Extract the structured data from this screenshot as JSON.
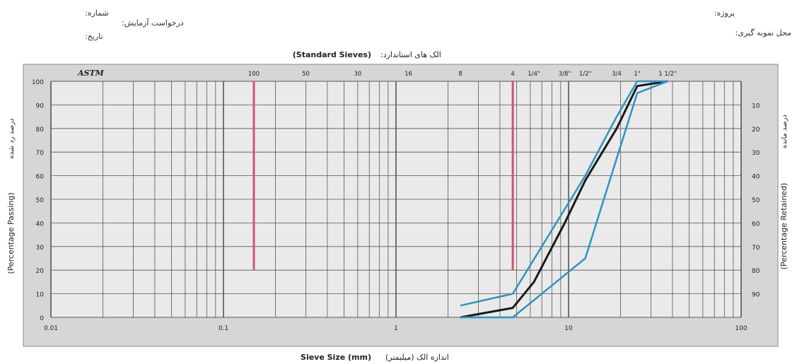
{
  "header": {
    "right_line1": "پروژه:",
    "right_line2": "محل نمونه گیری:",
    "left_number": "شماره:",
    "left_request": "درخواست آزمایش:",
    "left_date": "تاریخ:"
  },
  "colors": {
    "plot_bg": "#eaeaea",
    "frame": "#8a8a8a",
    "grid": "#555555",
    "marker_lines": "#d0507a",
    "gradation": "#1a1a1a",
    "limits": "#2b95bf"
  },
  "chart_data": {
    "type": "line",
    "title": "(Standard Sieves)",
    "title_fa": "الک های استاندارد:",
    "xlabel": "Sieve Size (mm)",
    "xlabel_fa": "اندازه الک (میلیمتر)",
    "ylabel_left": "(Percentage Passing)",
    "ylabel_left_fa": "درصد رد شده",
    "ylabel_right": "(Percentage Retained)",
    "ylabel_right_fa": "درصد مانده",
    "x_scale": "log",
    "xlim": [
      0.01,
      100
    ],
    "ylim": [
      0,
      100
    ],
    "x_ticks": [
      0.01,
      0.1,
      1,
      10,
      100
    ],
    "x_tick_labels": [
      "0.01",
      "0.1",
      "1",
      "10",
      "100"
    ],
    "y_ticks_left": [
      0,
      10,
      20,
      30,
      40,
      50,
      60,
      70,
      80,
      90,
      100
    ],
    "y_tick_labels_left": [
      "0",
      "10",
      "20",
      "30",
      "40",
      "50",
      "60",
      "70",
      "80",
      "90",
      "100"
    ],
    "y_ticks_right_passing": [
      90,
      80,
      70,
      60,
      50,
      40,
      30,
      20,
      10
    ],
    "y_tick_labels_right": [
      "10",
      "20",
      "30",
      "40",
      "50",
      "60",
      "70",
      "80",
      "90"
    ],
    "sieve_standard": "ASTM",
    "sieves": [
      {
        "label": "100",
        "size": 0.15
      },
      {
        "label": "50",
        "size": 0.3
      },
      {
        "label": "30",
        "size": 0.6
      },
      {
        "label": "16",
        "size": 1.18
      },
      {
        "label": "8",
        "size": 2.36
      },
      {
        "label": "4",
        "size": 4.75
      },
      {
        "label": "1/4\"",
        "size": 6.3
      },
      {
        "label": "3/8\"",
        "size": 9.5
      },
      {
        "label": "1/2\"",
        "size": 12.5
      },
      {
        "label": "3/4",
        "size": 19
      },
      {
        "label": "1\"",
        "size": 25
      },
      {
        "label": "1 1/2\"",
        "size": 37.5
      }
    ],
    "marker_lines": [
      {
        "x": 0.15,
        "y_from": 20,
        "y_to": 100
      },
      {
        "x": 4.75,
        "y_from": 20,
        "y_to": 100
      }
    ],
    "series": [
      {
        "role": "gradation",
        "x": [
          2.36,
          4.75,
          6.3,
          9.5,
          12.5,
          19,
          25,
          37.5
        ],
        "y": [
          0,
          4,
          15,
          40,
          58,
          80,
          98,
          100
        ]
      },
      {
        "role": "upper_limit",
        "x": [
          2.36,
          4.75,
          12.5,
          19,
          25,
          37.5
        ],
        "y": [
          5,
          10,
          60,
          85,
          100,
          100
        ]
      },
      {
        "role": "lower_limit",
        "x": [
          2.36,
          4.75,
          12.5,
          25,
          37.5
        ],
        "y": [
          0,
          0,
          25,
          95,
          100
        ]
      }
    ]
  }
}
